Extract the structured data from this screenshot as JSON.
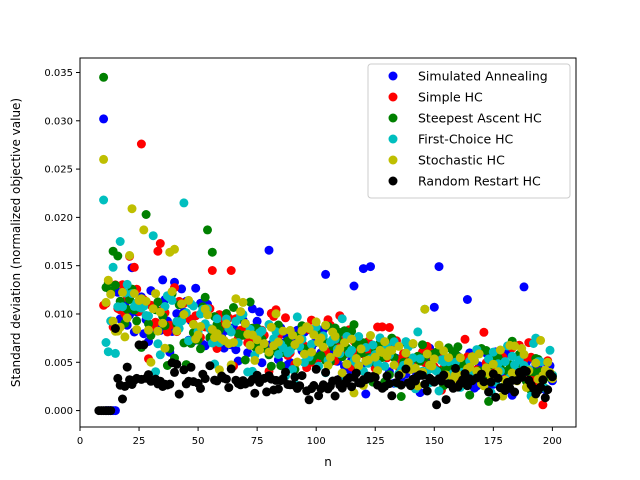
{
  "chart_data": {
    "type": "scatter",
    "title": "",
    "xlabel": "n",
    "ylabel": "Standard deviation (normalized objective value)",
    "xlim": [
      0,
      210
    ],
    "ylim": [
      -0.0017,
      0.0365
    ],
    "x_ticks": [
      0,
      25,
      50,
      75,
      100,
      125,
      150,
      175,
      200
    ],
    "x_tick_labels": [
      "0",
      "25",
      "50",
      "75",
      "100",
      "125",
      "150",
      "175",
      "200"
    ],
    "y_ticks": [
      0.0,
      0.005,
      0.01,
      0.015,
      0.02,
      0.025,
      0.03,
      0.035
    ],
    "y_tick_labels": [
      "0.000",
      "0.005",
      "0.010",
      "0.015",
      "0.020",
      "0.025",
      "0.030",
      "0.035"
    ],
    "grid": false,
    "legend_position": "upper right",
    "point_generation": "x from 10 to 200 step 1; y = base(x) + amp(x)*noise, deterministic; plus listed highlight points",
    "series": [
      {
        "name": "Simulated Annealing",
        "color": "#0000ff",
        "highlights": [
          [
            10,
            0.0302
          ],
          [
            11,
            0.0
          ],
          [
            12,
            0.0
          ],
          [
            13,
            0.0
          ],
          [
            14,
            0.0
          ],
          [
            15,
            0.0
          ],
          [
            80,
            0.0166
          ],
          [
            104,
            0.0141
          ],
          [
            116,
            0.0129
          ],
          [
            120,
            0.0147
          ],
          [
            123,
            0.0149
          ],
          [
            152,
            0.0149
          ],
          [
            164,
            0.0115
          ],
          [
            188,
            0.0128
          ],
          [
            150,
            0.0107
          ]
        ],
        "base": 0.0078,
        "decay": 0.0026,
        "seed": 11
      },
      {
        "name": "Simple HC",
        "color": "#ff0000",
        "highlights": [
          [
            10,
            0.0109
          ],
          [
            11,
            0.0111
          ],
          [
            26,
            0.0276
          ],
          [
            33,
            0.0165
          ],
          [
            34,
            0.0173
          ],
          [
            56,
            0.0145
          ],
          [
            64,
            0.0145
          ],
          [
            105,
            0.0094
          ],
          [
            171,
            0.0081
          ],
          [
            196,
            0.0006
          ]
        ],
        "base": 0.0082,
        "decay": 0.0026,
        "seed": 23
      },
      {
        "name": "Steepest Ascent HC",
        "color": "#008000",
        "highlights": [
          [
            10,
            0.0345
          ],
          [
            12,
            0.0132
          ],
          [
            14,
            0.0165
          ],
          [
            28,
            0.0203
          ],
          [
            54,
            0.0187
          ],
          [
            56,
            0.0164
          ],
          [
            116,
            0.0089
          ],
          [
            165,
            0.0016
          ]
        ],
        "base": 0.0075,
        "decay": 0.0027,
        "seed": 37
      },
      {
        "name": "First-Choice HC",
        "color": "#00bfbf",
        "highlights": [
          [
            10,
            0.0218
          ],
          [
            12,
            0.0061
          ],
          [
            17,
            0.0175
          ],
          [
            44,
            0.0215
          ],
          [
            31,
            0.0181
          ],
          [
            146,
            0.0105
          ],
          [
            193,
            0.0075
          ]
        ],
        "base": 0.0077,
        "decay": 0.0026,
        "seed": 51
      },
      {
        "name": "Stochastic HC",
        "color": "#bfbf00",
        "highlights": [
          [
            10,
            0.026
          ],
          [
            12,
            0.0135
          ],
          [
            22,
            0.0209
          ],
          [
            27,
            0.0187
          ],
          [
            40,
            0.0167
          ],
          [
            38,
            0.0164
          ],
          [
            146,
            0.0105
          ]
        ],
        "base": 0.0076,
        "decay": 0.0026,
        "seed": 67
      },
      {
        "name": "Random Restart HC",
        "color": "#000000",
        "highlights": [
          [
            8,
            0.0
          ],
          [
            9,
            0.0
          ],
          [
            10,
            0.0
          ],
          [
            11,
            0.0
          ],
          [
            12,
            0.0
          ],
          [
            13,
            0.0
          ],
          [
            15,
            0.0085
          ],
          [
            18,
            0.0012
          ],
          [
            19,
            0.0025
          ],
          [
            21,
            0.0032
          ],
          [
            22,
            0.0027
          ],
          [
            25,
            0.0068
          ],
          [
            27,
            0.0068
          ],
          [
            151,
            0.0006
          ]
        ],
        "base": 0.004,
        "decay": 0.0012,
        "seed": 83
      }
    ]
  }
}
